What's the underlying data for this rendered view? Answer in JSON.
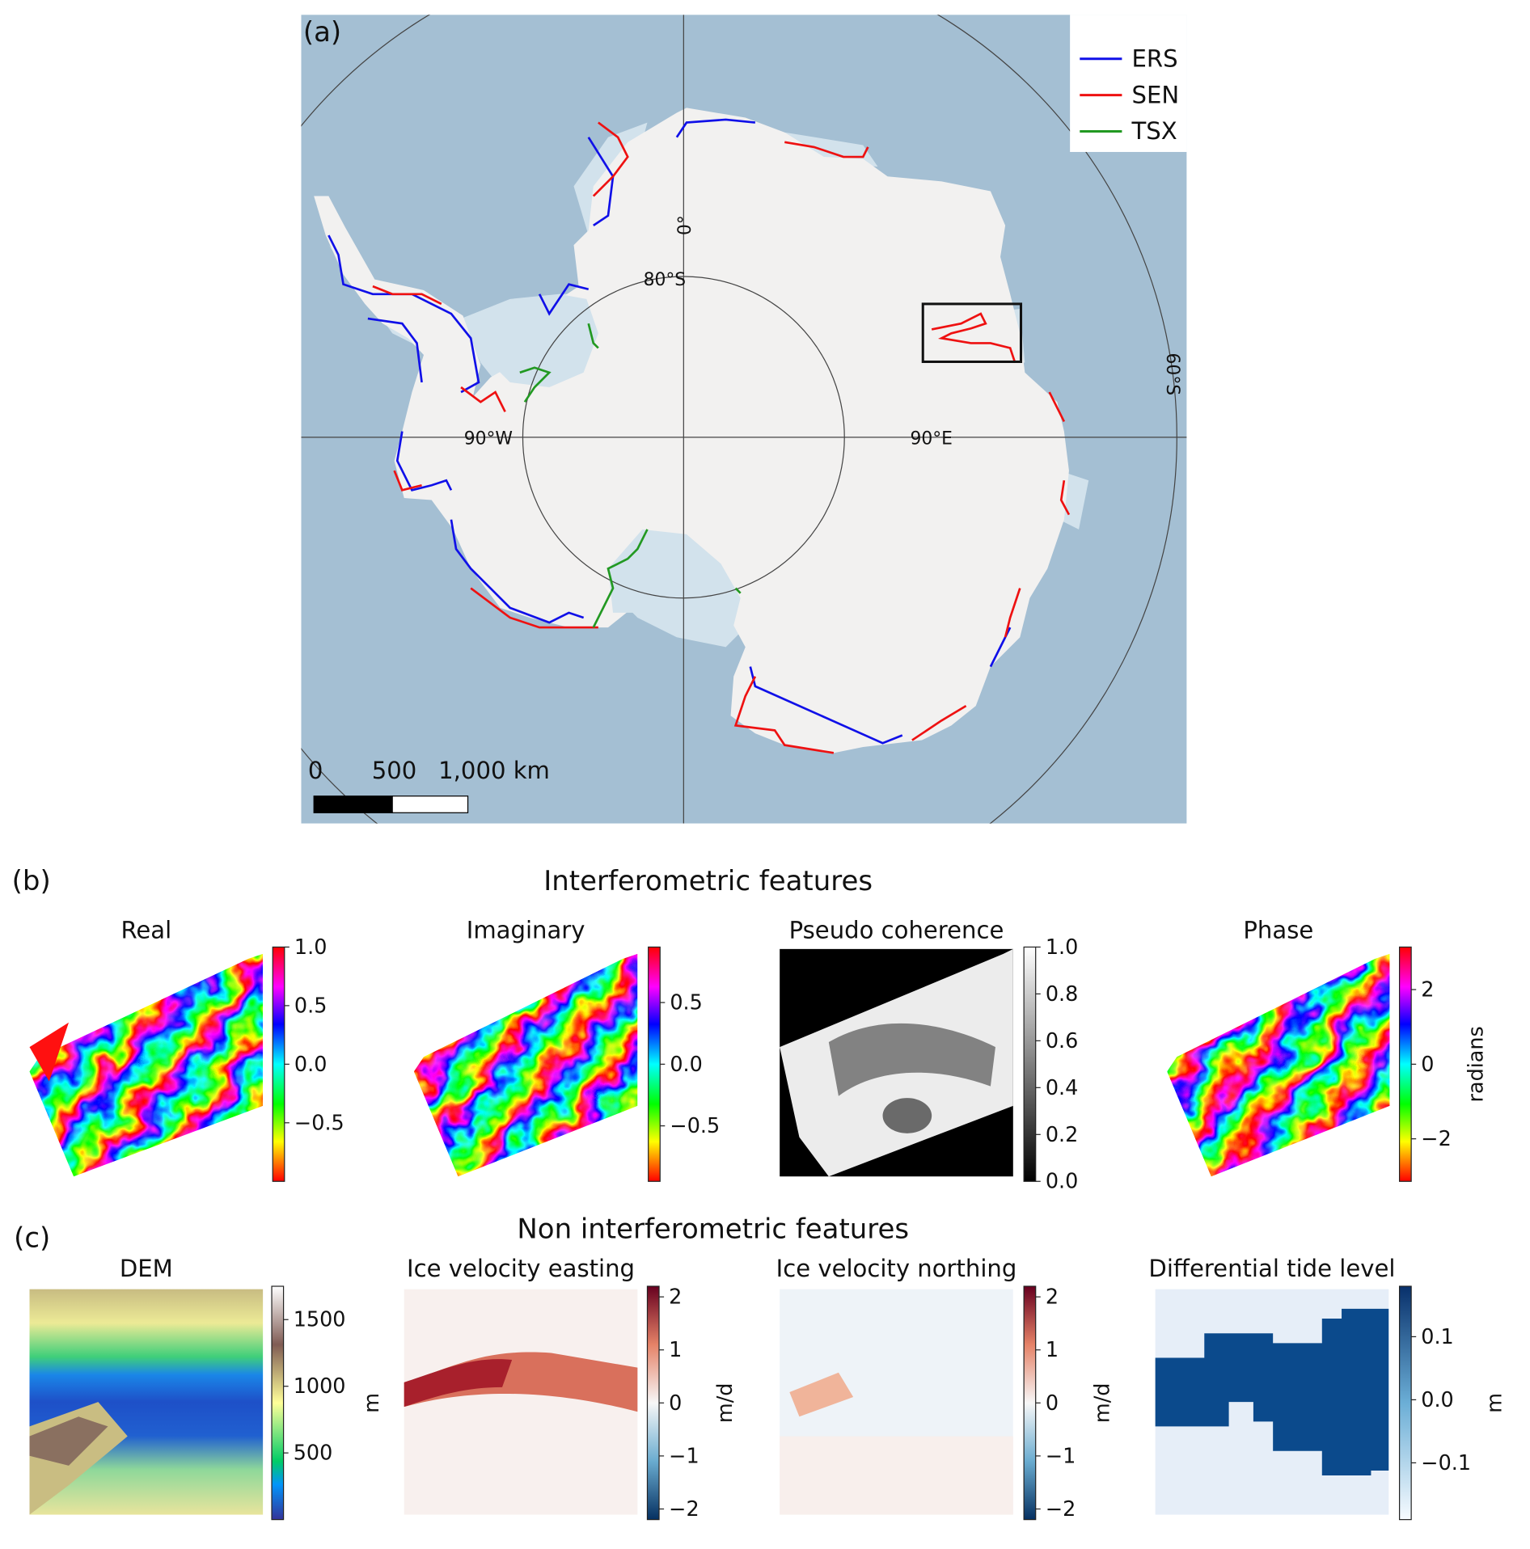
{
  "panel_a": {
    "label": "(a)",
    "legend": [
      {
        "name": "ERS",
        "color": "#1010e8"
      },
      {
        "name": "SEN",
        "color": "#ee1111"
      },
      {
        "name": "TSX",
        "color": "#229922"
      }
    ],
    "graticule": {
      "meridian_0": "0°",
      "lat_80": "80°S",
      "lon_90w": "90°W",
      "lon_90e": "90°E",
      "lat_60": "60°S"
    },
    "scale_bar": {
      "zero": "0",
      "mid": "500",
      "end": "1,000 km"
    },
    "colors": {
      "ocean": "#a4bfd3",
      "land": "#f2f1f0",
      "ice_shelf": "#d2e2ec"
    }
  },
  "panel_b": {
    "label": "(b)",
    "title": "Interferometric features",
    "plots": [
      {
        "title": "Real",
        "colormap": "hsv",
        "range": [
          -1,
          1
        ],
        "ticks": [
          1.0,
          0.5,
          0.0,
          -0.5
        ],
        "tick_labels": [
          "1.0",
          "0.5",
          "0.0",
          "−0.5"
        ],
        "cbar_label": ""
      },
      {
        "title": "Imaginary",
        "colormap": "hsv",
        "range": [
          -0.95,
          0.95
        ],
        "ticks": [
          0.5,
          0.0,
          -0.5
        ],
        "tick_labels": [
          "0.5",
          "0.0",
          "−0.5"
        ],
        "cbar_label": ""
      },
      {
        "title": "Pseudo coherence",
        "colormap": "gray",
        "range": [
          0,
          1
        ],
        "ticks": [
          1.0,
          0.8,
          0.6,
          0.4,
          0.2,
          0.0
        ],
        "tick_labels": [
          "1.0",
          "0.8",
          "0.6",
          "0.4",
          "0.2",
          "0.0"
        ],
        "cbar_label": ""
      },
      {
        "title": "Phase",
        "colormap": "hsv",
        "range": [
          -3.14,
          3.14
        ],
        "ticks": [
          2,
          0,
          -2
        ],
        "tick_labels": [
          "2",
          "0",
          "−2"
        ],
        "cbar_label": "radians"
      }
    ]
  },
  "panel_c": {
    "label": "(c)",
    "title": "Non interferometric features",
    "plots": [
      {
        "title": "DEM",
        "colormap": "terrain",
        "range": [
          0,
          1750
        ],
        "ticks": [
          1500,
          1000,
          500
        ],
        "tick_labels": [
          "1500",
          "1000",
          "500"
        ],
        "cbar_label": "m"
      },
      {
        "title": "Ice velocity easting",
        "colormap": "RdBu_r",
        "range": [
          -2.2,
          2.2
        ],
        "ticks": [
          2,
          1,
          0,
          -1,
          -2
        ],
        "tick_labels": [
          "2",
          "1",
          "0",
          "−1",
          "−2"
        ],
        "cbar_label": "m/d"
      },
      {
        "title": "Ice velocity northing",
        "colormap": "RdBu_r",
        "range": [
          -2.2,
          2.2
        ],
        "ticks": [
          2,
          1,
          0,
          -1,
          -2
        ],
        "tick_labels": [
          "2",
          "1",
          "0",
          "−1",
          "−2"
        ],
        "cbar_label": "m/d"
      },
      {
        "title": "Differential tide level",
        "colormap": "Blues",
        "range": [
          -0.19,
          0.18
        ],
        "ticks": [
          0.1,
          0.0,
          -0.1
        ],
        "tick_labels": [
          "0.1",
          "0.0",
          "−0.1"
        ],
        "cbar_label": "m"
      }
    ]
  }
}
